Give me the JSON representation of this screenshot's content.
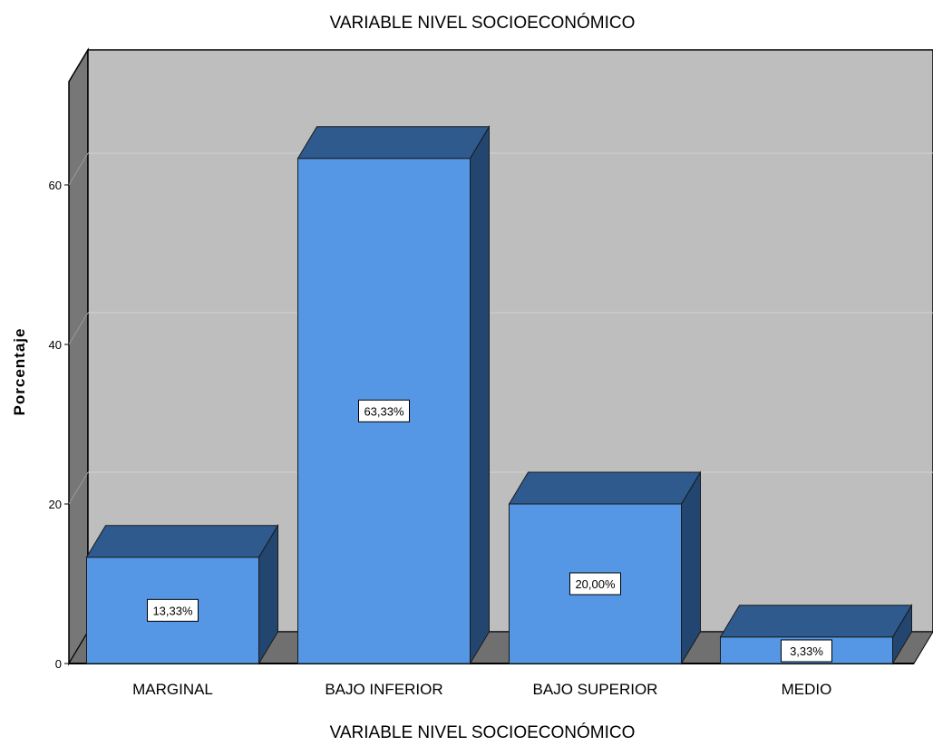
{
  "chart_data": {
    "type": "bar",
    "title": "VARIABLE NIVEL SOCIOECONÓMICO",
    "xlabel": "VARIABLE NIVEL SOCIOECONÓMICO",
    "ylabel": "Porcentaje",
    "categories": [
      "MARGINAL",
      "BAJO INFERIOR",
      "BAJO SUPERIOR",
      "MEDIO"
    ],
    "values": [
      13.33,
      63.33,
      20.0,
      3.33
    ],
    "data_labels": [
      "13,33%",
      "63,33%",
      "20,00%",
      "3,33%"
    ],
    "yticks": [
      0,
      20,
      40,
      60
    ],
    "ytick_labels": [
      "0",
      "20",
      "40",
      "60"
    ],
    "ylim": [
      0,
      60
    ],
    "grid": true,
    "style": "3d",
    "colors": {
      "bar_front": "#5597E5",
      "bar_top": "#2E5A8E",
      "bar_side": "#22466F",
      "plot_back": "#BEBEBE",
      "left_wall": "#777777",
      "floor": "#707070",
      "gridline": "#D3D3D3"
    }
  }
}
